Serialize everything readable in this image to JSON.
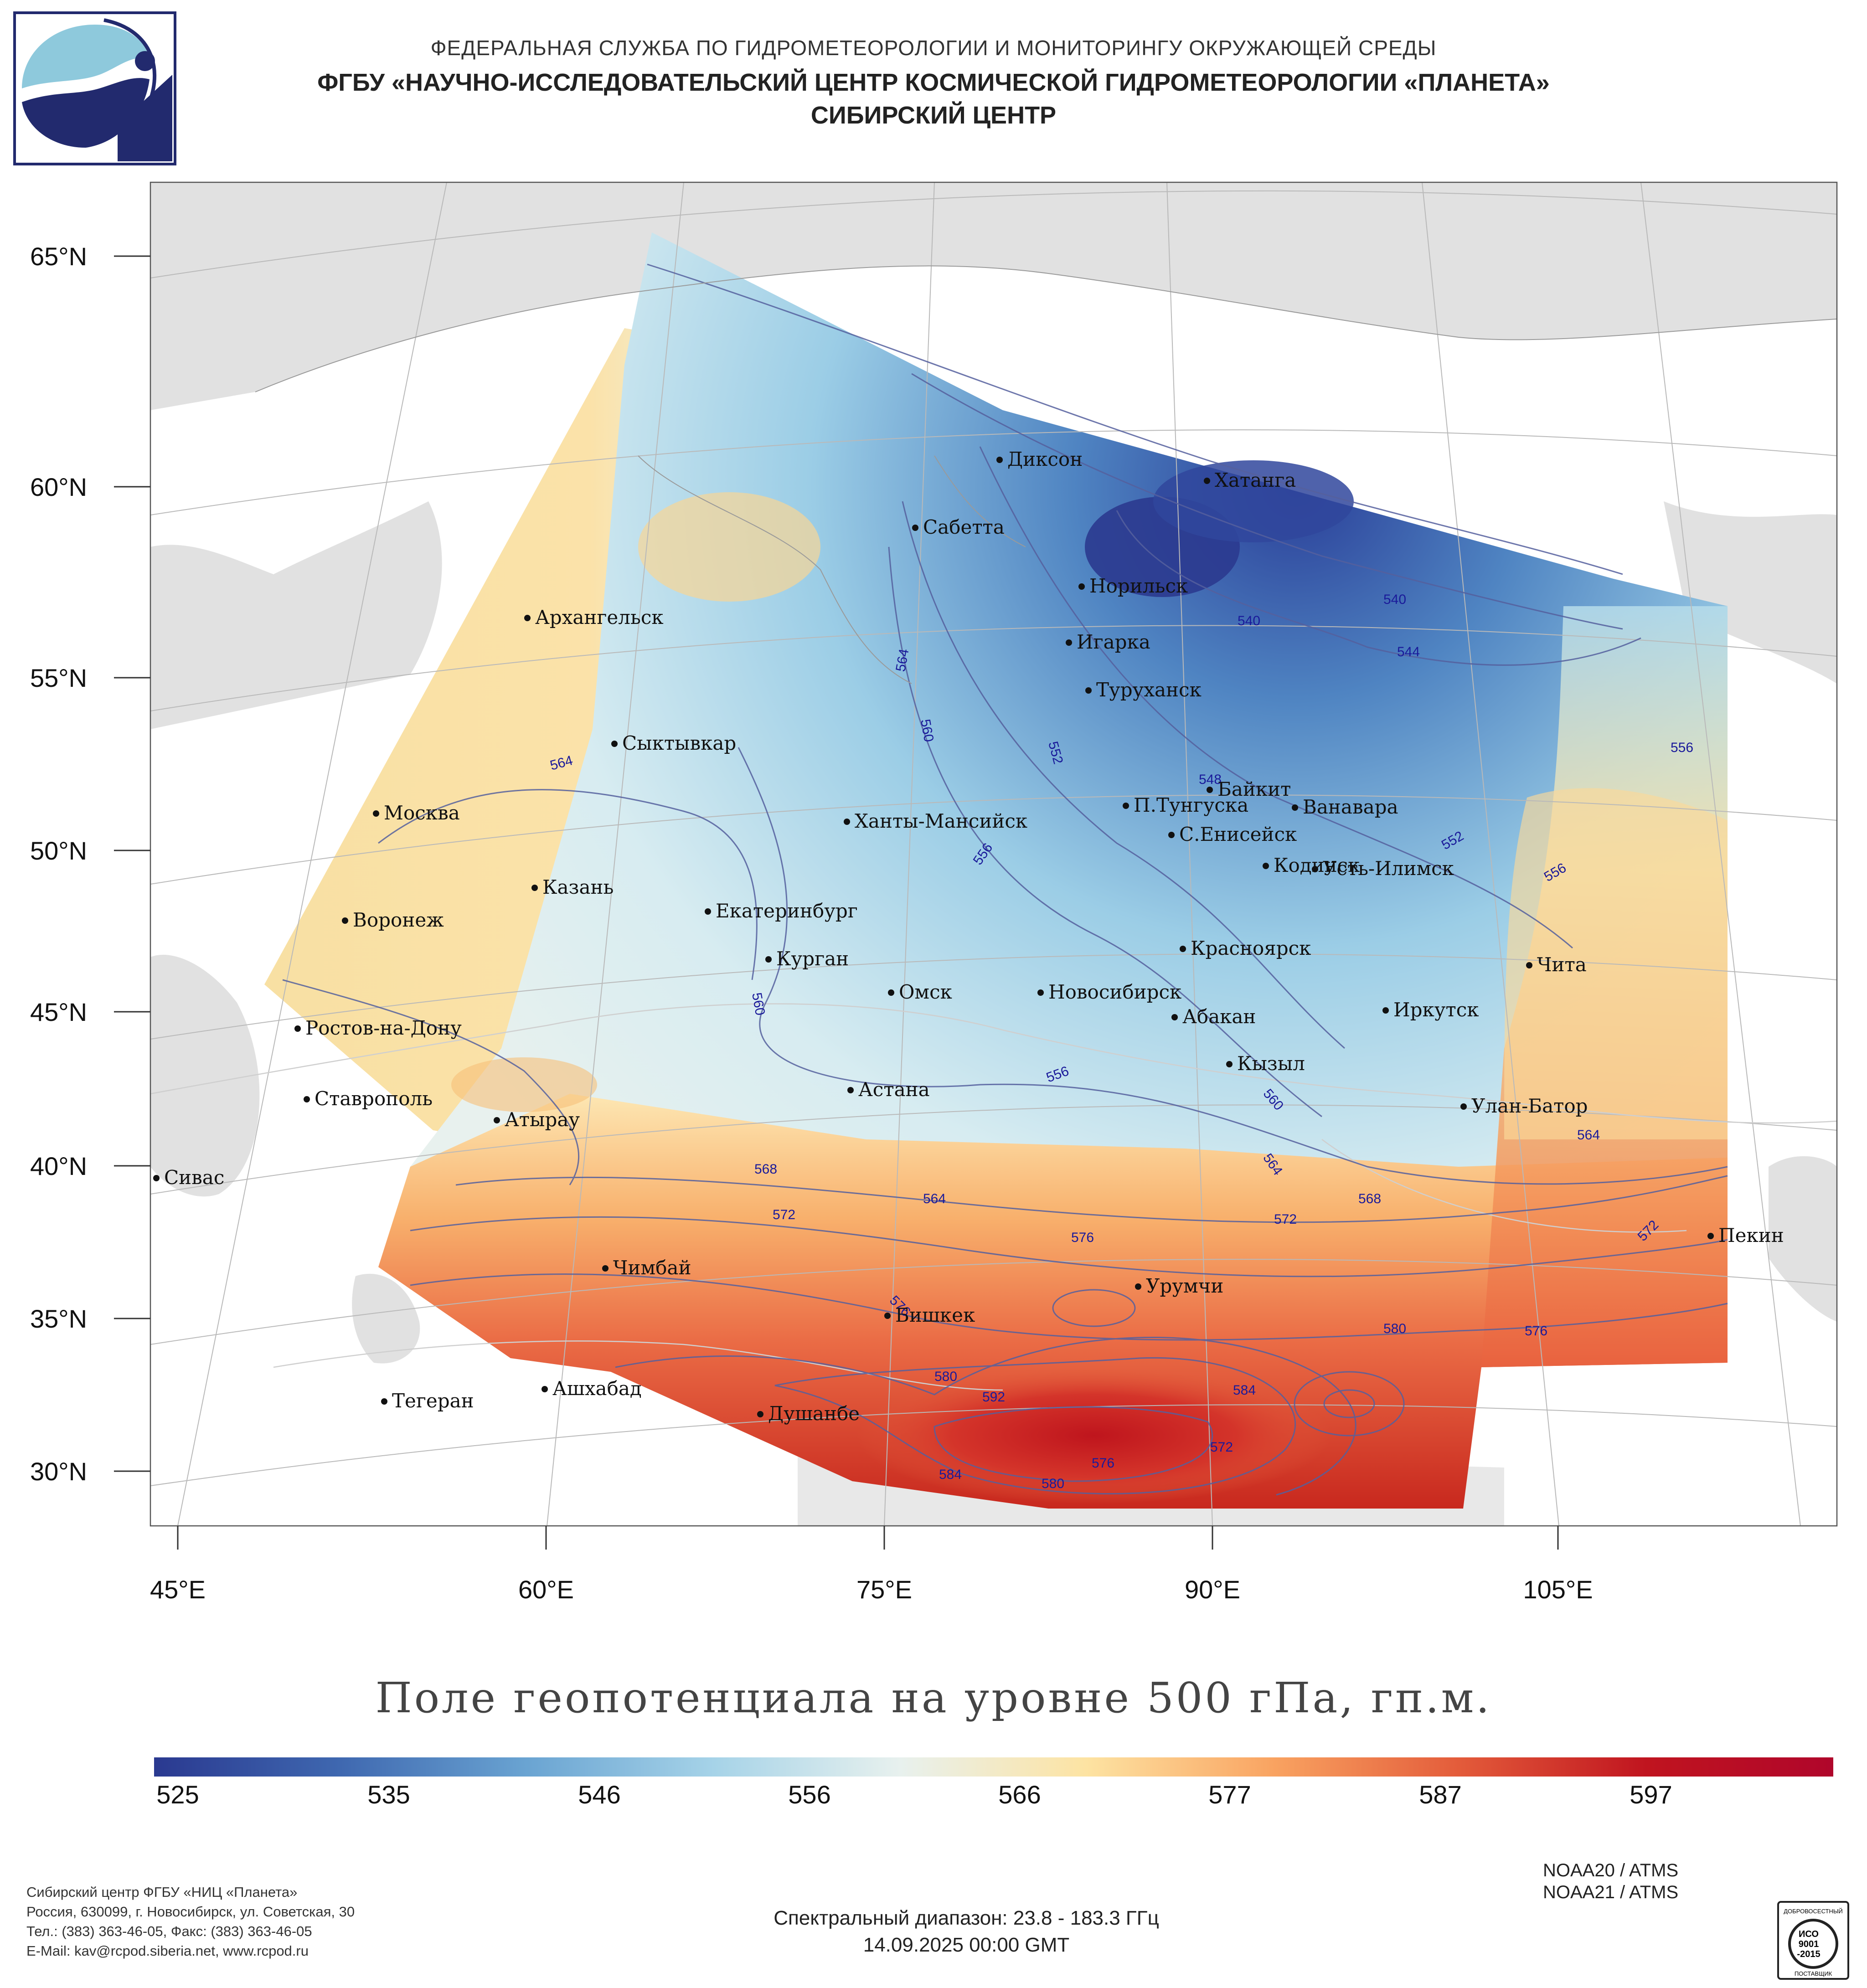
{
  "header": {
    "line1": "ФЕДЕРАЛЬНАЯ СЛУЖБА ПО ГИДРОМЕТЕОРОЛОГИИ И МОНИТОРИНГУ ОКРУЖАЮЩЕЙ СРЕДЫ",
    "line2": "ФГБУ «НАУЧНО-ИССЛЕДОВАТЕЛЬСКИЙ ЦЕНТР КОСМИЧЕСКОЙ ГИДРОМЕТЕОРОЛОГИИ «ПЛАНЕТА»",
    "line3": "СИБИРСКИЙ ЦЕНТР"
  },
  "axes": {
    "lat_labels": [
      "65°N",
      "60°N",
      "55°N",
      "50°N",
      "45°N",
      "40°N",
      "35°N",
      "30°N"
    ],
    "lon_labels": [
      "45°E",
      "60°E",
      "75°E",
      "90°E",
      "105°E"
    ]
  },
  "cities": [
    "Диксон",
    "Хатанга",
    "Сабетта",
    "Норильск",
    "Игарка",
    "Туруханск",
    "Архангельск",
    "Сыктывкар",
    "Москва",
    "Казань",
    "Воронеж",
    "Ханты-Мансийск",
    "Екатеринбург",
    "П.Тунгуска",
    "Байкит",
    "Ванавара",
    "С.Енисейск",
    "Кодинск",
    "Усть-Илимск",
    "Курган",
    "Омск",
    "Новосибирск",
    "Красноярск",
    "Абакан",
    "Иркутск",
    "Чита",
    "Ростов-на-Дону",
    "Ставрополь",
    "Атырау",
    "Астана",
    "Кызыл",
    "Улан-Батор",
    "Сивас",
    "Чимбай",
    "Урумчи",
    "Бишкек",
    "Пекин",
    "Ашхабад",
    "Тегеран",
    "Душанбе"
  ],
  "contour_labels": [
    "540",
    "540",
    "544",
    "548",
    "552",
    "552",
    "556",
    "556",
    "556",
    "556",
    "560",
    "560",
    "560",
    "564",
    "564",
    "564",
    "564",
    "564",
    "568",
    "568",
    "572",
    "572",
    "572",
    "572",
    "576",
    "576",
    "576",
    "576",
    "580",
    "580",
    "580",
    "584",
    "584",
    "592"
  ],
  "map_title": "Поле геопотенциала на уровне 500 гПа, гп.м.",
  "colorbar": {
    "ticks": [
      "525",
      "535",
      "546",
      "556",
      "566",
      "577",
      "587",
      "597"
    ],
    "colors": [
      "#2a3990",
      "#3f68b0",
      "#6aa4d2",
      "#a6d3e8",
      "#e8f1ee",
      "#fde3a2",
      "#f9a361",
      "#e35b3a",
      "#c0141f",
      "#b0062b"
    ]
  },
  "footer": {
    "contact_lines": [
      "Сибирский центр ФГБУ «НИЦ «Планета»",
      "Россия, 630099, г. Новосибирск, ул. Советская, 30",
      "Тел.: (383) 363-46-05, Факс: (383) 363-46-05",
      "E-Mail: kav@rcpod.siberia.net, www.rcpod.ru"
    ],
    "satellites": [
      "NOAA20 / ATMS",
      "NOAA21 / ATMS"
    ],
    "spectral": "Спектральный диапазон: 23.8 - 183.3 ГГц",
    "datetime": "14.09.2025 00:00 GMT",
    "iso_badge": [
      "ДОБРОВОСЕСТНЫЙ",
      "ИСО",
      "9001",
      "-2015",
      "ПОСТАВЩИК"
    ]
  }
}
